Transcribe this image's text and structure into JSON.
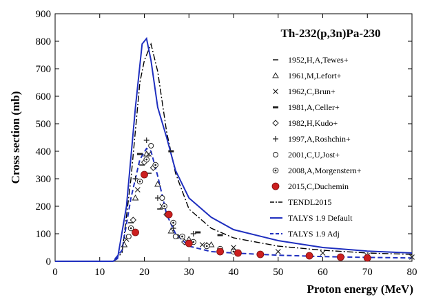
{
  "chart_data": {
    "type": "scatter",
    "title": "Th-232(p,3n)Pa-230",
    "xlabel": "Proton energy (MeV)",
    "ylabel": "Cross section (mb)",
    "xlim": [
      0,
      80
    ],
    "ylim": [
      0,
      900
    ],
    "xticks": [
      0,
      10,
      20,
      30,
      40,
      50,
      60,
      70,
      80
    ],
    "yticks": [
      0,
      100,
      200,
      300,
      400,
      500,
      600,
      700,
      800,
      900
    ],
    "grid": false,
    "legend_position": "right",
    "colors": {
      "default": "#1f2fbf",
      "duchemin": "#cc1f1f",
      "black": "#000000"
    },
    "series": [
      {
        "name": "1952,H,A,Tewes+",
        "kind": "scatter",
        "marker": "dash",
        "x": [
          17.0,
          19.5,
          21.0,
          23.5
        ],
        "y": [
          140,
          350,
          320,
          190
        ]
      },
      {
        "name": "1961,M,Lefort+",
        "kind": "scatter",
        "marker": "triangle",
        "x": [
          15.5,
          18.0,
          20.5,
          23.0,
          26.0,
          30.0,
          35.0
        ],
        "y": [
          60,
          230,
          390,
          280,
          110,
          80,
          60
        ]
      },
      {
        "name": "1962,C,Brun+",
        "kind": "scatter",
        "marker": "x",
        "x": [
          16.0,
          18.5,
          21.0,
          24.0,
          28.0,
          33.0,
          40.0,
          50.0,
          60.0,
          70.0,
          80.0
        ],
        "y": [
          80,
          260,
          390,
          200,
          90,
          60,
          50,
          35,
          30,
          20,
          15
        ]
      },
      {
        "name": "1981,A,Celler+",
        "kind": "scatter",
        "marker": "bar",
        "x": [
          19.0,
          26.0,
          32.0,
          37.0
        ],
        "y": [
          390,
          400,
          105,
          95
        ]
      },
      {
        "name": "1982,H,Kudo+",
        "kind": "scatter",
        "marker": "diamond",
        "x": [
          17.5,
          20.0,
          22.0,
          25.0,
          29.0
        ],
        "y": [
          150,
          360,
          340,
          170,
          70
        ]
      },
      {
        "name": "1997,A,Roshchin+",
        "kind": "scatter",
        "marker": "plus",
        "x": [
          18.0,
          20.5,
          23.0,
          26.5,
          31.0,
          34.0
        ],
        "y": [
          300,
          440,
          230,
          120,
          100,
          60
        ]
      },
      {
        "name": "2001,C,U,Jost+",
        "kind": "scatter",
        "marker": "circle-open",
        "x": [
          16.5,
          19.0,
          21.5,
          24.0,
          27.0
        ],
        "y": [
          90,
          290,
          420,
          230,
          90
        ]
      },
      {
        "name": "2008,A,Morgenstern+",
        "kind": "scatter",
        "marker": "circle-dot",
        "x": [
          17.0,
          19.0,
          20.5,
          22.5,
          24.5,
          26.5,
          28.5,
          31.0,
          34.0,
          37.0,
          40.0
        ],
        "y": [
          120,
          290,
          370,
          350,
          200,
          140,
          90,
          70,
          55,
          45,
          35
        ]
      },
      {
        "name": "2015,C,Duchemin",
        "kind": "scatter",
        "marker": "circle-filled",
        "x": [
          18.0,
          20.0,
          25.5,
          30.0,
          37.0,
          41.0,
          46.0,
          57.0,
          64.0,
          70.0
        ],
        "y": [
          105,
          315,
          170,
          65,
          35,
          30,
          25,
          20,
          15,
          12
        ]
      },
      {
        "name": "TENDL2015",
        "kind": "line",
        "style": "dashdot",
        "x": [
          0,
          13,
          15,
          17,
          19,
          20,
          21,
          21.5,
          23,
          25,
          27,
          30,
          35,
          40,
          50,
          60,
          70,
          80
        ],
        "y": [
          0,
          0,
          30,
          300,
          650,
          730,
          770,
          790,
          690,
          470,
          320,
          190,
          120,
          85,
          55,
          40,
          30,
          25
        ]
      },
      {
        "name": "TALYS 1.9 Default",
        "kind": "line",
        "style": "solid",
        "x": [
          0,
          13,
          14,
          16,
          18,
          19.5,
          20.5,
          21.5,
          23,
          25,
          27,
          30,
          35,
          40,
          50,
          60,
          70,
          80
        ],
        "y": [
          0,
          0,
          10,
          200,
          560,
          790,
          810,
          730,
          560,
          450,
          330,
          230,
          160,
          115,
          75,
          50,
          37,
          30
        ]
      },
      {
        "name": "TALYS 1.9 Adj",
        "kind": "line",
        "style": "dashed",
        "x": [
          0,
          13,
          15,
          17,
          19,
          20.5,
          21.5,
          23,
          25,
          27,
          30,
          35,
          40,
          50,
          60,
          70,
          80
        ],
        "y": [
          0,
          0,
          40,
          230,
          370,
          410,
          400,
          310,
          170,
          100,
          55,
          35,
          30,
          22,
          17,
          14,
          12
        ]
      }
    ]
  }
}
